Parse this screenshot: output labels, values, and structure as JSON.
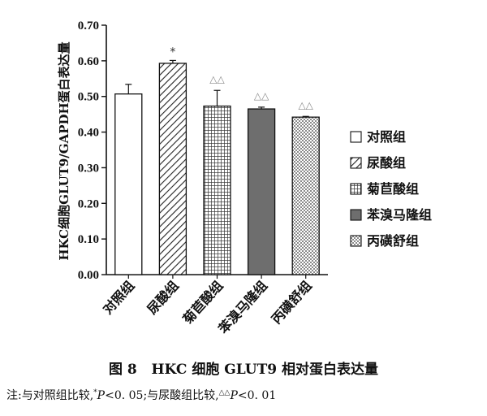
{
  "chart_data": {
    "type": "bar",
    "ylabel": "HKC细胞GLUT9/GAPDH蛋白表达量",
    "ylim": [
      0.0,
      0.7
    ],
    "yticks": [
      "0.00",
      "0.10",
      "0.20",
      "0.30",
      "0.40",
      "0.50",
      "0.60",
      "0.70"
    ],
    "categories": [
      "对照组",
      "尿酸组",
      "菊苣酸组",
      "苯溴马隆组",
      "丙磺舒组"
    ],
    "values": [
      0.507,
      0.593,
      0.473,
      0.465,
      0.442
    ],
    "errors": [
      0.027,
      0.008,
      0.044,
      0.005,
      0.002
    ],
    "annotations": [
      "",
      "*",
      "△△",
      "△△",
      "△△"
    ],
    "legend": [
      "对照组",
      "尿酸组",
      "菊苣酸组",
      "苯溴马隆组",
      "丙磺舒组"
    ],
    "legend_position": "right",
    "colors": {
      "annotation_star": "#333333",
      "annotation_triangle": "#8a8a8a",
      "bar4_fill": "#6e6e6e"
    }
  },
  "figure": {
    "caption_label": "图 8",
    "caption_text": "HKC 细胞 GLUT9 相对蛋白表达量",
    "note_prefix": "注:与对照组比较,",
    "note_star": "*",
    "note_p": "P",
    "note_threshold1": "<0. 05;与尿酸组比较,",
    "note_tri": "△△",
    "note_threshold2": "<0. 01"
  }
}
